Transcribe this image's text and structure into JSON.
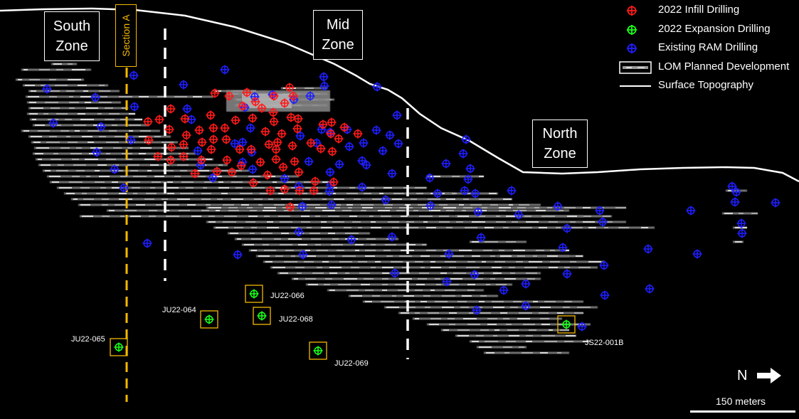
{
  "zones": [
    {
      "id": "south",
      "line1": "South",
      "line2": "Zone"
    },
    {
      "id": "mid",
      "line1": "Mid",
      "line2": "Zone"
    },
    {
      "id": "north",
      "line1": "North",
      "line2": "Zone"
    }
  ],
  "section_label": "Section A",
  "legend": {
    "infill": "2022 Infill Drilling",
    "expansion": "2022 Expansion Drilling",
    "existing": "Existing RAM Drilling",
    "lom": "LOM Planned Development",
    "topo": "Surface Topography"
  },
  "expansion_holes": [
    "JU22-065",
    "JU22-064",
    "JU22-066",
    "JU22-068",
    "JU22-069",
    "JS22-001B"
  ],
  "north_label": "N",
  "scale_label": "150 meters",
  "colors": {
    "infill": "#ff1a1a",
    "expansion": "#1aff1a",
    "existing": "#1f1fff",
    "section_line": "#f5b800",
    "highlight_box": "#f5b800",
    "background": "#000000"
  }
}
